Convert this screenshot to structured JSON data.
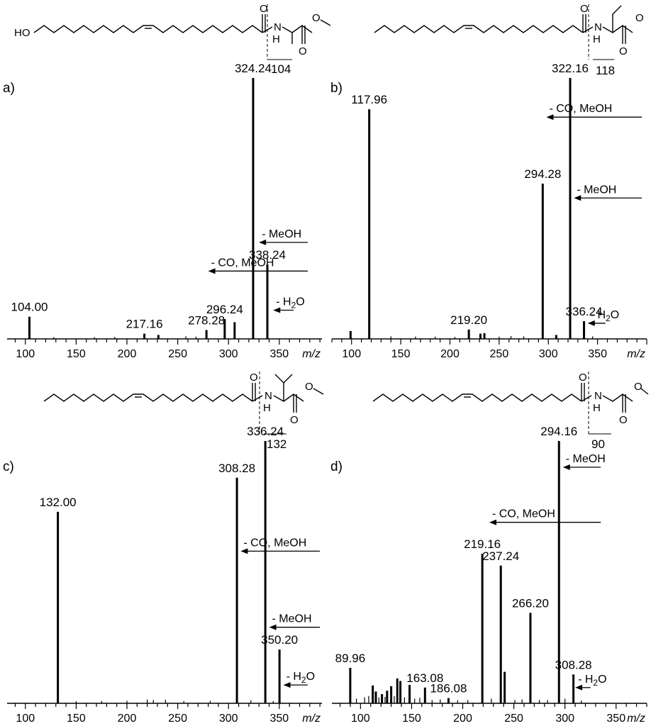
{
  "figure": {
    "colors": {
      "ink": "#000000",
      "background": "#ffffff"
    },
    "struct_glyphs": {
      "nitrogen": "N",
      "hydrogen": "H",
      "oxygen": "O",
      "hydroxyl": "HO"
    }
  },
  "chart_data": [
    {
      "type": "bar",
      "panel": "a)",
      "xlabel": "m/z",
      "xlim": [
        82,
        392
      ],
      "xticks": [
        "100",
        "150",
        "200",
        "250",
        "300",
        "350"
      ],
      "ylim": [
        0,
        100
      ],
      "fragment_label": "104",
      "major_peaks": [
        {
          "mz": 104.0,
          "intensity": 8.5,
          "label": "104.00"
        },
        {
          "mz": 217.16,
          "intensity": 2.0,
          "label": "217.16"
        },
        {
          "mz": 231.0,
          "intensity": 1.5
        },
        {
          "mz": 278.28,
          "intensity": 3.4,
          "label": "278.28"
        },
        {
          "mz": 296.24,
          "intensity": 7.6,
          "label": "296.24"
        },
        {
          "mz": 306.0,
          "intensity": 6.4
        },
        {
          "mz": 324.24,
          "intensity": 100,
          "label": "324.24"
        },
        {
          "mz": 338.24,
          "intensity": 28.5,
          "label": "338.24"
        }
      ],
      "noise": [
        {
          "mz": 128,
          "intensity": 0.4
        },
        {
          "mz": 168,
          "intensity": 0.4
        },
        {
          "mz": 188,
          "intensity": 0.5
        },
        {
          "mz": 258,
          "intensity": 0.7
        },
        {
          "mz": 268,
          "intensity": 0.6
        }
      ],
      "annotations": [
        {
          "text": "- MeOH",
          "x1": 378,
          "x2": 330,
          "y": 37
        },
        {
          "text": "- CO, MeOH",
          "x1": 378,
          "x2": 280,
          "y": 26
        },
        {
          "text": "- H",
          "sub": "2",
          "tail": "O",
          "x1": 364,
          "x2": 344,
          "y": 11
        }
      ]
    },
    {
      "type": "bar",
      "panel": "b)",
      "xlabel": "m/z",
      "xlim": [
        80,
        400
      ],
      "xticks": [
        "100",
        "150",
        "200",
        "250",
        "300",
        "350"
      ],
      "ylim": [
        0,
        100
      ],
      "fragment_label": "118",
      "major_peaks": [
        {
          "mz": 99.0,
          "intensity": 3.0
        },
        {
          "mz": 117.96,
          "intensity": 88.0,
          "label": "117.96"
        },
        {
          "mz": 219.2,
          "intensity": 3.6,
          "label": "219.20"
        },
        {
          "mz": 231.0,
          "intensity": 2.0
        },
        {
          "mz": 235.0,
          "intensity": 2.2
        },
        {
          "mz": 294.28,
          "intensity": 59.5,
          "label": "294.28"
        },
        {
          "mz": 308.0,
          "intensity": 1.5
        },
        {
          "mz": 322.16,
          "intensity": 100,
          "label": "322.16"
        },
        {
          "mz": 336.24,
          "intensity": 6.8,
          "label": "336.24"
        }
      ],
      "noise": [
        {
          "mz": 140,
          "intensity": 0.7
        },
        {
          "mz": 165,
          "intensity": 0.6
        },
        {
          "mz": 185,
          "intensity": 0.6
        },
        {
          "mz": 205,
          "intensity": 0.5
        },
        {
          "mz": 250,
          "intensity": 0.6
        },
        {
          "mz": 262,
          "intensity": 0.8
        },
        {
          "mz": 275,
          "intensity": 0.7
        },
        {
          "mz": 345,
          "intensity": 0.7
        }
      ],
      "annotations": [
        {
          "text": "- CO, MeOH",
          "x1": 395,
          "x2": 298,
          "y": 85
        },
        {
          "text": "- MeOH",
          "x1": 395,
          "x2": 326,
          "y": 54
        },
        {
          "text": "- H",
          "sub": "2",
          "tail": "O",
          "x1": 358,
          "x2": 340,
          "y": 6
        }
      ]
    },
    {
      "type": "bar",
      "panel": "c)",
      "xlabel": "m/z",
      "xlim": [
        82,
        392
      ],
      "xticks": [
        "100",
        "150",
        "200",
        "250",
        "300",
        "350"
      ],
      "ylim": [
        0,
        100
      ],
      "fragment_label": "132",
      "major_peaks": [
        {
          "mz": 132.0,
          "intensity": 73.0,
          "label": "132.00"
        },
        {
          "mz": 308.28,
          "intensity": 86.0,
          "label": "308.28"
        },
        {
          "mz": 336.24,
          "intensity": 100,
          "label": "336.24"
        },
        {
          "mz": 350.2,
          "intensity": 20.5,
          "label": "350.20"
        }
      ],
      "noise": [
        {
          "mz": 150,
          "intensity": 0.5
        },
        {
          "mz": 175,
          "intensity": 0.6
        },
        {
          "mz": 200,
          "intensity": 0.7
        },
        {
          "mz": 220,
          "intensity": 1.2
        },
        {
          "mz": 226,
          "intensity": 1.0
        },
        {
          "mz": 238,
          "intensity": 1.1
        },
        {
          "mz": 256,
          "intensity": 0.6
        },
        {
          "mz": 282,
          "intensity": 0.7
        },
        {
          "mz": 322,
          "intensity": 0.9
        },
        {
          "mz": 344,
          "intensity": 0.6
        }
      ],
      "annotations": [
        {
          "text": "- CO, MeOH",
          "x1": 390,
          "x2": 312,
          "y": 58
        },
        {
          "text": "- MeOH",
          "x1": 390,
          "x2": 340,
          "y": 29
        },
        {
          "text": "- H",
          "sub": "2",
          "tail": "O",
          "x1": 378,
          "x2": 354,
          "y": 7
        }
      ]
    },
    {
      "type": "bar",
      "panel": "d)",
      "xlabel": "m/z",
      "xlim": [
        72,
        380
      ],
      "xticks": [
        "100",
        "150",
        "200",
        "250",
        "300",
        "350"
      ],
      "ylim": [
        0,
        100
      ],
      "fragment_label": "90",
      "major_peaks": [
        {
          "mz": 89.96,
          "intensity": 13.5,
          "label": "89.96"
        },
        {
          "mz": 112.0,
          "intensity": 6.8
        },
        {
          "mz": 115.0,
          "intensity": 4.5
        },
        {
          "mz": 121.0,
          "intensity": 3.5
        },
        {
          "mz": 126.0,
          "intensity": 4.8
        },
        {
          "mz": 130.0,
          "intensity": 6.5
        },
        {
          "mz": 136.0,
          "intensity": 9.5
        },
        {
          "mz": 139.0,
          "intensity": 8.5
        },
        {
          "mz": 148.0,
          "intensity": 7.0
        },
        {
          "mz": 163.08,
          "intensity": 6.0,
          "label": "163.08"
        },
        {
          "mz": 186.08,
          "intensity": 2.0,
          "label": "186.08"
        },
        {
          "mz": 219.16,
          "intensity": 57.0,
          "label": "219.16"
        },
        {
          "mz": 237.24,
          "intensity": 52.5,
          "label": "237.24"
        },
        {
          "mz": 241.0,
          "intensity": 12.0
        },
        {
          "mz": 266.2,
          "intensity": 34.5,
          "label": "266.20"
        },
        {
          "mz": 294.16,
          "intensity": 100,
          "label": "294.16"
        },
        {
          "mz": 308.28,
          "intensity": 11.0,
          "label": "308.28"
        }
      ],
      "noise": [
        {
          "mz": 96,
          "intensity": 1.5
        },
        {
          "mz": 104,
          "intensity": 2.0
        },
        {
          "mz": 108,
          "intensity": 2.5
        },
        {
          "mz": 118,
          "intensity": 2.0
        },
        {
          "mz": 124,
          "intensity": 2.2
        },
        {
          "mz": 133,
          "intensity": 2.5
        },
        {
          "mz": 143,
          "intensity": 2.0
        },
        {
          "mz": 153,
          "intensity": 1.5
        },
        {
          "mz": 158,
          "intensity": 1.8
        },
        {
          "mz": 170,
          "intensity": 1.0
        },
        {
          "mz": 178,
          "intensity": 1.2
        },
        {
          "mz": 195,
          "intensity": 0.9
        },
        {
          "mz": 205,
          "intensity": 1.0
        },
        {
          "mz": 228,
          "intensity": 1.5
        },
        {
          "mz": 251,
          "intensity": 1.0
        },
        {
          "mz": 258,
          "intensity": 1.2
        },
        {
          "mz": 275,
          "intensity": 1.0
        },
        {
          "mz": 283,
          "intensity": 1.0
        },
        {
          "mz": 300,
          "intensity": 1.5
        },
        {
          "mz": 316,
          "intensity": 0.8
        }
      ],
      "annotations": [
        {
          "text": "- MeOH",
          "x1": 335,
          "x2": 298,
          "y": 90
        },
        {
          "text": "- CO, MeOH",
          "x1": 335,
          "x2": 226,
          "y": 69
        },
        {
          "text": "- H",
          "sub": "2",
          "tail": "O",
          "x1": 325,
          "x2": 310,
          "y": 6
        }
      ]
    }
  ]
}
